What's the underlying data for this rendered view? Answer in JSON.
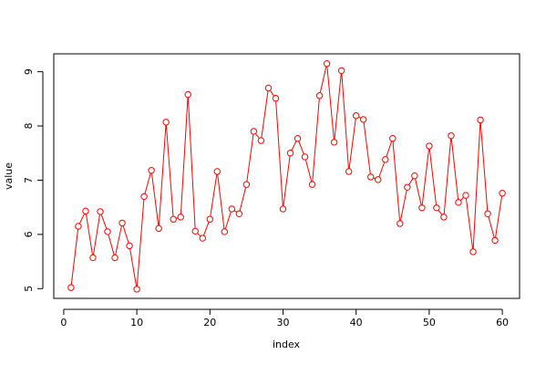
{
  "chart_data": {
    "type": "line",
    "xlabel": "index",
    "ylabel": "value",
    "color": "#ff0000",
    "x": [
      1,
      2,
      3,
      4,
      5,
      6,
      7,
      8,
      9,
      10,
      11,
      12,
      13,
      14,
      15,
      16,
      17,
      18,
      19,
      20,
      21,
      22,
      23,
      24,
      25,
      26,
      27,
      28,
      29,
      30,
      31,
      32,
      33,
      34,
      35,
      36,
      37,
      38,
      39,
      40,
      41,
      42,
      43,
      44,
      45,
      46,
      47,
      48,
      49,
      50,
      51,
      52,
      53,
      54,
      55,
      56,
      57,
      58,
      59,
      60
    ],
    "values": [
      5.02,
      6.15,
      6.43,
      5.57,
      6.42,
      6.05,
      5.57,
      6.21,
      5.79,
      4.99,
      6.7,
      7.18,
      6.11,
      8.07,
      6.28,
      6.32,
      8.58,
      6.06,
      5.93,
      6.28,
      7.16,
      6.05,
      6.47,
      6.38,
      6.92,
      7.9,
      7.73,
      8.7,
      8.51,
      6.47,
      7.5,
      7.77,
      7.43,
      6.92,
      8.56,
      9.15,
      7.7,
      9.02,
      7.16,
      8.19,
      8.12,
      7.06,
      7.01,
      7.38,
      7.77,
      6.2,
      6.87,
      7.08,
      6.49,
      7.63,
      6.49,
      6.32,
      7.82,
      6.59,
      6.72,
      5.68,
      8.11,
      6.38,
      5.89,
      6.76
    ],
    "xlim": [
      -1.36,
      62.36
    ],
    "ylim": [
      4.82,
      9.33
    ],
    "xticks": [
      0,
      10,
      20,
      30,
      40,
      50,
      60
    ],
    "yticks": [
      5,
      6,
      7,
      8,
      9
    ]
  }
}
